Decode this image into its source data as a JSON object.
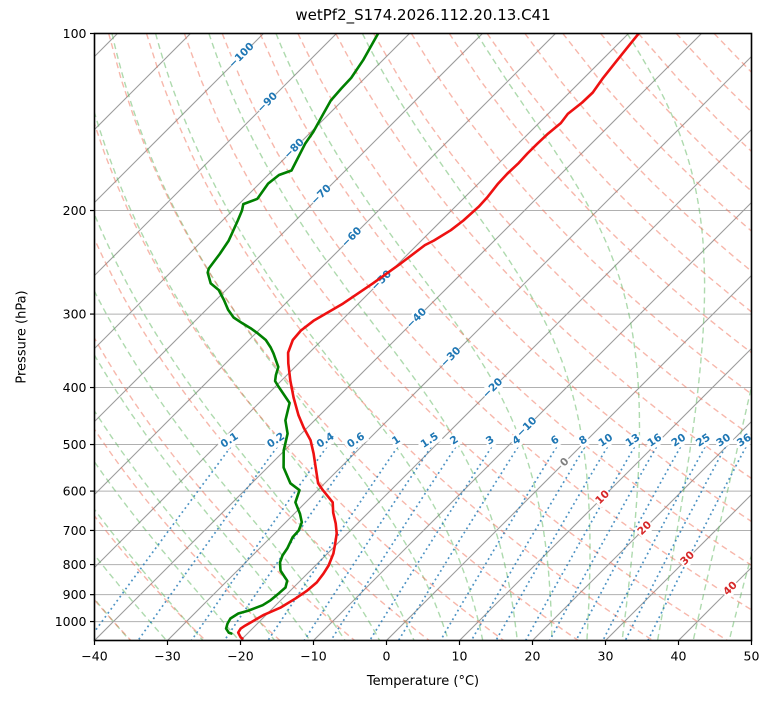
{
  "title": "wetPf2_S174.2026.112.20.13.C41",
  "axes": {
    "x_label": "Temperature (°C)",
    "y_label": "Pressure (hPa)",
    "x_tick_labels": [
      "−40",
      "−30",
      "−20",
      "−10",
      "0",
      "10",
      "20",
      "30",
      "40",
      "50"
    ],
    "x_tick_values": [
      -40,
      -30,
      -20,
      -10,
      0,
      10,
      20,
      30,
      40,
      50
    ],
    "y_tick_labels": [
      "100",
      "200",
      "300",
      "400",
      "500",
      "600",
      "700",
      "800",
      "900",
      "1000"
    ],
    "y_tick_values": [
      100,
      200,
      300,
      400,
      500,
      600,
      700,
      800,
      900,
      1000
    ]
  },
  "style": {
    "temperature_color": "#ee1111",
    "dewpoint_color": "#008000",
    "dry_adiabat_color": "#ef7058",
    "moist_adiabat_color": "#5db55d",
    "mixing_line_color": "#1f77b4",
    "mixing_label_color": "#1f77b4",
    "isotherm_color": "#9c9c9c",
    "isobar_color": "#b0b0b0",
    "neg_label_color": "#1f77b4",
    "zero_label_color": "#808080",
    "pos_label_color": "#d62728",
    "frame_color": "#000000"
  },
  "chart_data": {
    "type": "line",
    "chart": "skew-t-log-p",
    "title": "wetPf2_S174.2026.112.20.13.C41",
    "x_axis": {
      "label": "Temperature (°C)",
      "range": [
        -40,
        50
      ],
      "skew_deg": 45
    },
    "y_axis": {
      "label": "Pressure (hPa)",
      "scale": "log",
      "top": 100,
      "bottom": 1077
    },
    "isobars": [
      100,
      200,
      300,
      400,
      500,
      600,
      700,
      800,
      900,
      1000
    ],
    "isotherms": {
      "values": [
        -120,
        -110,
        -100,
        -90,
        -80,
        -70,
        -60,
        -50,
        -40,
        -30,
        -20,
        -10,
        0,
        10,
        20,
        30,
        40,
        50
      ],
      "labels": [
        {
          "t": -100,
          "p": 109
        },
        {
          "t": -90,
          "p": 131
        },
        {
          "t": -80,
          "p": 157
        },
        {
          "t": -70,
          "p": 188
        },
        {
          "t": -60,
          "p": 222
        },
        {
          "t": -50,
          "p": 263
        },
        {
          "t": -40,
          "p": 305
        },
        {
          "t": -30,
          "p": 355
        },
        {
          "t": -20,
          "p": 401
        },
        {
          "t": -10,
          "p": 467
        },
        {
          "t": 0,
          "p": 536
        },
        {
          "t": 10,
          "p": 615
        },
        {
          "t": 20,
          "p": 694
        },
        {
          "t": 30,
          "p": 781
        },
        {
          "t": 40,
          "p": 879
        }
      ]
    },
    "dry_adiabats_theta_c": [
      -40,
      -30,
      -20,
      -10,
      0,
      10,
      20,
      30,
      40,
      50,
      60,
      70,
      80,
      90,
      100,
      110,
      120,
      130,
      140,
      150,
      160,
      170,
      180,
      190
    ],
    "moist_adiabats_t0_c": [
      -40,
      -35,
      -30,
      -25,
      -20,
      -15,
      -10,
      -5,
      0,
      5,
      10,
      15,
      20,
      25,
      30,
      35,
      40,
      45,
      50
    ],
    "mixing_ratios_g_kg": {
      "values": [
        0.1,
        0.2,
        0.4,
        0.6,
        1,
        1.5,
        2,
        3,
        4,
        6,
        8,
        10,
        13,
        16,
        20,
        25,
        30,
        36
      ],
      "labels": [
        "0.1",
        "0.2",
        "0.4",
        "0.6",
        "1",
        "1.5",
        "2",
        "3",
        "4",
        "6",
        "8",
        "10",
        "13",
        "16",
        "20",
        "25",
        "30",
        "36"
      ],
      "top_pressure": 505,
      "label_pressure": 500
    },
    "series": [
      {
        "name": "temperature",
        "points_p_t": [
          [
            100,
            -48.6
          ],
          [
            111,
            -47.9
          ],
          [
            119,
            -47.4
          ],
          [
            126,
            -46.8
          ],
          [
            131,
            -46.9
          ],
          [
            137,
            -47.3
          ],
          [
            142,
            -47.0
          ],
          [
            148,
            -47.3
          ],
          [
            154,
            -47.4
          ],
          [
            160,
            -47.4
          ],
          [
            166,
            -47.3
          ],
          [
            173,
            -47.4
          ],
          [
            180,
            -47.3
          ],
          [
            190,
            -46.9
          ],
          [
            197,
            -46.8
          ],
          [
            208,
            -47.0
          ],
          [
            216,
            -47.4
          ],
          [
            225,
            -48.3
          ],
          [
            229,
            -48.9
          ],
          [
            246,
            -49.7
          ],
          [
            266,
            -50.8
          ],
          [
            288,
            -52.1
          ],
          [
            308,
            -53.8
          ],
          [
            320,
            -54.2
          ],
          [
            332,
            -54.0
          ],
          [
            349,
            -52.9
          ],
          [
            364,
            -51.4
          ],
          [
            389,
            -48.8
          ],
          [
            416,
            -46.0
          ],
          [
            446,
            -42.9
          ],
          [
            468,
            -40.5
          ],
          [
            492,
            -37.8
          ],
          [
            518,
            -35.6
          ],
          [
            547,
            -33.4
          ],
          [
            582,
            -30.9
          ],
          [
            598,
            -29.3
          ],
          [
            627,
            -26.3
          ],
          [
            653,
            -24.8
          ],
          [
            681,
            -23.0
          ],
          [
            708,
            -21.5
          ],
          [
            737,
            -20.3
          ],
          [
            766,
            -19.2
          ],
          [
            803,
            -18.2
          ],
          [
            829,
            -17.8
          ],
          [
            858,
            -17.5
          ],
          [
            885,
            -17.7
          ],
          [
            913,
            -18.2
          ],
          [
            946,
            -19.0
          ],
          [
            974,
            -20.3
          ],
          [
            1016,
            -21.4
          ],
          [
            1028,
            -21.6
          ],
          [
            1044,
            -21.4
          ],
          [
            1064,
            -20.4
          ],
          [
            1069,
            -20.0
          ]
        ]
      },
      {
        "name": "dewpoint",
        "points_p_t": [
          [
            100,
            -84.3
          ],
          [
            111,
            -82.7
          ],
          [
            119,
            -81.9
          ],
          [
            124,
            -81.8
          ],
          [
            130,
            -81.6
          ],
          [
            137,
            -80.8
          ],
          [
            147,
            -79.7
          ],
          [
            154,
            -79.2
          ],
          [
            171,
            -77.4
          ],
          [
            174,
            -78.5
          ],
          [
            180,
            -78.8
          ],
          [
            191,
            -78.2
          ],
          [
            195,
            -79.4
          ],
          [
            200,
            -78.7
          ],
          [
            208,
            -77.9
          ],
          [
            218,
            -77.0
          ],
          [
            225,
            -76.4
          ],
          [
            237,
            -75.8
          ],
          [
            251,
            -75.3
          ],
          [
            255,
            -74.9
          ],
          [
            266,
            -73.0
          ],
          [
            273,
            -71.0
          ],
          [
            284,
            -68.9
          ],
          [
            295,
            -67.0
          ],
          [
            304,
            -65.2
          ],
          [
            311,
            -63.2
          ],
          [
            317,
            -61.4
          ],
          [
            324,
            -59.6
          ],
          [
            332,
            -57.7
          ],
          [
            342,
            -56.0
          ],
          [
            350,
            -54.8
          ],
          [
            359,
            -53.6
          ],
          [
            369,
            -52.3
          ],
          [
            381,
            -51.5
          ],
          [
            390,
            -50.8
          ],
          [
            399,
            -49.5
          ],
          [
            425,
            -45.8
          ],
          [
            455,
            -44.0
          ],
          [
            479,
            -41.9
          ],
          [
            512,
            -40.1
          ],
          [
            547,
            -37.8
          ],
          [
            582,
            -34.7
          ],
          [
            598,
            -32.5
          ],
          [
            627,
            -31.4
          ],
          [
            656,
            -29.2
          ],
          [
            678,
            -27.8
          ],
          [
            700,
            -27.1
          ],
          [
            719,
            -27.0
          ],
          [
            751,
            -26.2
          ],
          [
            772,
            -25.9
          ],
          [
            793,
            -25.3
          ],
          [
            819,
            -24.1
          ],
          [
            842,
            -22.5
          ],
          [
            852,
            -21.8
          ],
          [
            875,
            -21.1
          ],
          [
            895,
            -21.2
          ],
          [
            920,
            -21.4
          ],
          [
            938,
            -21.8
          ],
          [
            958,
            -23.0
          ],
          [
            969,
            -24.0
          ],
          [
            988,
            -24.4
          ],
          [
            1008,
            -24.1
          ],
          [
            1028,
            -23.6
          ],
          [
            1044,
            -22.7
          ],
          [
            1048,
            -22.2
          ]
        ]
      }
    ]
  }
}
